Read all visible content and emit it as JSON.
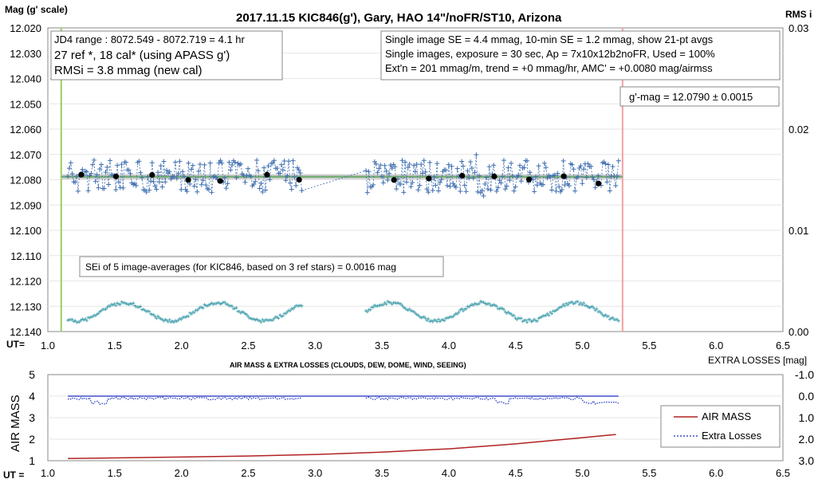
{
  "chart_data": [
    {
      "type": "scatter",
      "title": "2017.11.15  KIC846(g'),  Gary, HAO  14\"/noFR/ST10,  Arizona",
      "ylabel": "Mag (g' scale)",
      "y2label": "RMS i",
      "xlabel": "UT=",
      "xlim": [
        1.0,
        6.5
      ],
      "ylim": [
        12.14,
        12.02
      ],
      "y2lim": [
        0.0,
        0.03
      ],
      "xticks": [
        "1.0",
        "1.5",
        "2.0",
        "2.5",
        "3.0",
        "3.5",
        "4.0",
        "4.5",
        "5.0",
        "5.5",
        "6.0",
        "6.5"
      ],
      "yticks": [
        "12.020",
        "12.030",
        "12.040",
        "12.050",
        "12.060",
        "12.070",
        "12.080",
        "12.090",
        "12.100",
        "12.110",
        "12.120",
        "12.130",
        "12.140"
      ],
      "y2ticks": [
        "0.03",
        "0.02",
        "0.01",
        "0.00"
      ],
      "grid": true,
      "annotations": {
        "box_left": [
          "JD4 range : 8072.549 - 8072.719 = 4.1  hr",
          "27 ref *, 18 cal* (using APASS g')",
          "RMSi = 3.8 mmag (new cal)"
        ],
        "box_right": [
          "Single image SE = 4.4 mmag, 10-min SE = 1.2 mmag, show  21-pt avgs",
          "Single images, exposure = 30 sec, Ap = 7x10x12b2noFR,  Used = 100%",
          "Ext'n = 201 mmag/m, trend =  +0 mmag/hr, AMC' = +0.0080 mag/airmss"
        ],
        "mag_box": "g'-mag = 12.0790 ± 0.0015",
        "sei_box": "SEi of 5 image-averages (for KIC846, based on 3 ref stars) = 0.0016  mag"
      },
      "fit_line": {
        "y": 12.0788,
        "x_range": [
          1.1,
          5.3
        ]
      },
      "vertical_lines": [
        {
          "x": 1.1,
          "color": "#9acd5a"
        },
        {
          "x": 5.3,
          "color": "#f4a0a0"
        }
      ],
      "averages": {
        "x": [
          1.25,
          1.51,
          1.78,
          2.05,
          2.29,
          2.64,
          2.88,
          3.59,
          3.85,
          4.1,
          4.34,
          4.6,
          4.86,
          5.12
        ],
        "y": [
          12.078,
          12.0787,
          12.0781,
          12.0801,
          12.0805,
          12.078,
          12.08,
          12.0801,
          12.0795,
          12.0784,
          12.0787,
          12.0799,
          12.0786,
          12.0815
        ]
      },
      "segments": [
        {
          "name": "mag",
          "x_start": 1.15,
          "x_end": 2.9
        },
        {
          "name": "mag",
          "x_start": 3.38,
          "x_end": 5.27
        }
      ],
      "colors": {
        "points": "#3f6fb0",
        "rms": "#4aa3b0",
        "fit": "#6aaa6a",
        "averages": "#000000"
      }
    },
    {
      "type": "line",
      "title": "AIR MASS & EXTRA LOSSES (CLOUDS, DEW, DOME, WIND, SEEING)",
      "ylabel": "AIR MASS",
      "y2label": "EXTRA LOSSES [mag]",
      "xlabel": "UT =",
      "xlim": [
        1.0,
        6.5
      ],
      "ylim": [
        1,
        5
      ],
      "y2lim": [
        3.0,
        -1.0
      ],
      "xticks": [
        "1.0",
        "1.5",
        "2.0",
        "2.5",
        "3.0",
        "3.5",
        "4.0",
        "4.5",
        "5.0",
        "5.5",
        "6.0",
        "6.5"
      ],
      "yticks": [
        "5",
        "4",
        "3",
        "2",
        "1"
      ],
      "y2ticks": [
        "-1.0",
        "0.0",
        "1.0",
        "2.0",
        "3.0"
      ],
      "legend": [
        "AIR MASS",
        "Extra Losses"
      ],
      "series": [
        {
          "name": "AIR MASS",
          "color": "#b22222",
          "x": [
            1.15,
            1.5,
            2.0,
            2.5,
            3.0,
            3.5,
            4.0,
            4.5,
            5.0,
            5.25
          ],
          "y": [
            1.1,
            1.13,
            1.17,
            1.22,
            1.29,
            1.4,
            1.55,
            1.78,
            2.07,
            2.22
          ]
        },
        {
          "name": "Extra Losses",
          "color": "#1a2fbf",
          "x": [
            1.15,
            2.9,
            3.38,
            5.27
          ],
          "y": [
            0.05,
            0.05,
            0.05,
            0.08
          ]
        }
      ]
    }
  ]
}
